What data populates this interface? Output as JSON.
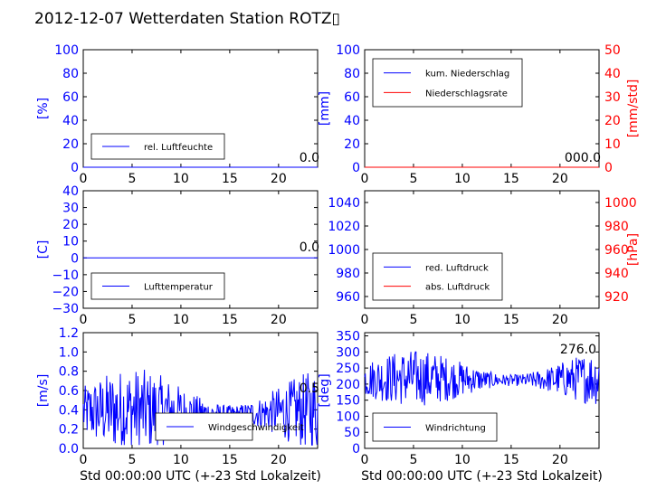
{
  "title": "2012-12-07 Wetterdaten Station ROTZ▯",
  "colors": {
    "primary": "#0000ff",
    "secondary": "#ff0000",
    "frame": "#000000"
  },
  "chart_data": [
    {
      "id": "humidity",
      "type": "line",
      "x_ticks": [
        0,
        5,
        10,
        15,
        20
      ],
      "xlim": [
        0,
        24
      ],
      "ylim": [
        0,
        100
      ],
      "y_ticks": [
        0,
        20,
        40,
        60,
        80,
        100
      ],
      "ylabel": "[%]",
      "legend": [
        "rel. Luftfeuchte"
      ],
      "legend_loc": "lower-left",
      "series": [
        {
          "name": "rel. Luftfeuchte",
          "color": "#0000ff",
          "constant": 0
        }
      ],
      "value_label": "0.0"
    },
    {
      "id": "precip",
      "type": "line",
      "x_ticks": [
        0,
        5,
        10,
        15,
        20
      ],
      "xlim": [
        0,
        24
      ],
      "ylim": [
        0,
        100
      ],
      "y_ticks": [
        0,
        20,
        40,
        60,
        80,
        100
      ],
      "ylabel": "[mm]",
      "y2lim": [
        0,
        50
      ],
      "y2_ticks": [
        0,
        10,
        20,
        30,
        40,
        50
      ],
      "y2label": "[mm/std]",
      "legend": [
        "kum. Niederschlag",
        "Niederschlagsrate"
      ],
      "legend_loc": "upper-left",
      "series": [
        {
          "name": "kum. Niederschlag",
          "color": "#0000ff",
          "constant": 0
        },
        {
          "name": "Niederschlagsrate",
          "color": "#ff0000",
          "constant": 0
        }
      ],
      "value_label": "000.0"
    },
    {
      "id": "temperature",
      "type": "line",
      "x_ticks": [
        0,
        5,
        10,
        15,
        20
      ],
      "xlim": [
        0,
        24
      ],
      "ylim": [
        -30,
        40
      ],
      "y_ticks": [
        -30,
        -20,
        -10,
        0,
        10,
        20,
        30,
        40
      ],
      "ylabel": "[C]",
      "legend": [
        "Lufttemperatur"
      ],
      "legend_loc": "lower-left",
      "series": [
        {
          "name": "Lufttemperatur",
          "color": "#0000ff",
          "constant": 0
        }
      ],
      "value_label": "0.0"
    },
    {
      "id": "pressure",
      "type": "line",
      "x_ticks": [
        0,
        5,
        10,
        15,
        20
      ],
      "xlim": [
        0,
        24
      ],
      "ylim": [
        950,
        1050
      ],
      "y_ticks": [
        960,
        980,
        1000,
        1020,
        1040
      ],
      "ylabel": "",
      "y2lim": [
        910,
        1010
      ],
      "y2_ticks": [
        920,
        940,
        960,
        980,
        1000
      ],
      "y2label": "[hPa]",
      "legend": [
        "red. Luftdruck",
        "abs. Luftdruck"
      ],
      "legend_loc": "lower-left",
      "series": [],
      "value_label": ""
    },
    {
      "id": "windspeed",
      "type": "line",
      "x_ticks": [
        0,
        5,
        10,
        15,
        20
      ],
      "xlim": [
        0,
        24
      ],
      "ylim": [
        0,
        1.2
      ],
      "y_ticks": [
        "0.0",
        "0.2",
        "0.4",
        "0.6",
        "0.8",
        "1.0",
        "1.2"
      ],
      "ylabel": "[m/s]",
      "xlabel": "Std 00:00:00 UTC (+-23 Std Lokalzeit)",
      "legend": [
        "Windgeschwindigkeit"
      ],
      "legend_loc": "lower-center",
      "series": [
        {
          "name": "Windgeschwindigkeit",
          "color": "#0000ff",
          "noise": true,
          "base": 0.35,
          "amp": 0.55
        }
      ],
      "value_label": "0.5"
    },
    {
      "id": "winddir",
      "type": "line",
      "x_ticks": [
        0,
        5,
        10,
        15,
        20
      ],
      "xlim": [
        0,
        24
      ],
      "ylim": [
        0,
        360
      ],
      "y_ticks": [
        0,
        50,
        100,
        150,
        200,
        250,
        300,
        350
      ],
      "ylabel": "[deg]",
      "xlabel": "Std 00:00:00 UTC (+-23 Std Lokalzeit)",
      "legend": [
        "Windrichtung"
      ],
      "legend_loc": "lower-left",
      "series": [
        {
          "name": "Windrichtung",
          "color": "#0000ff",
          "noise": true,
          "base": 210,
          "amp": 110
        }
      ],
      "value_label": "276.0"
    }
  ]
}
